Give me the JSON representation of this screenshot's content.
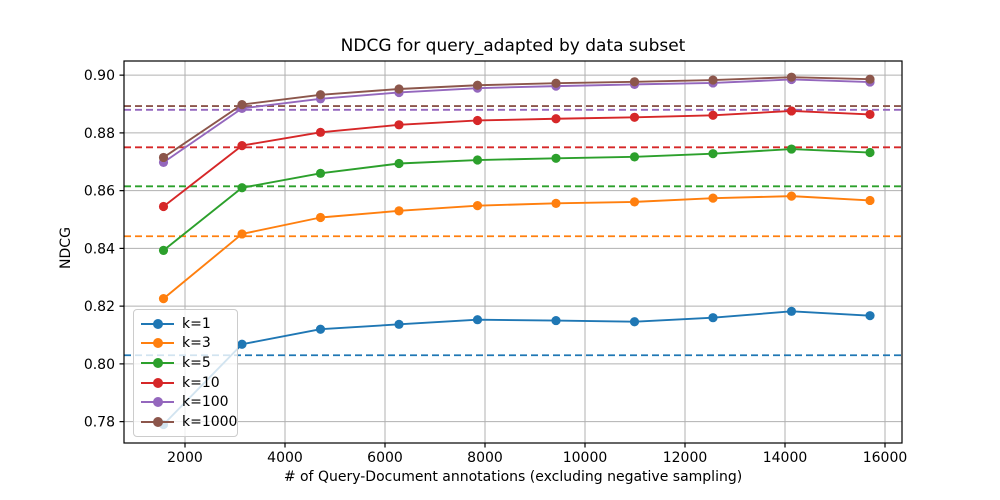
{
  "chart_data": {
    "type": "line",
    "title": "NDCG for query_adapted by data subset",
    "xlabel": "# of Query-Document annotations (excluding negative sampling)",
    "ylabel": "NDCG",
    "grid": true,
    "grid_color": "#b0b0b0",
    "spine_color": "#000000",
    "legend_position": "lower-left",
    "xlim": [
      780,
      16340
    ],
    "ylim": [
      0.7726,
      0.9049
    ],
    "xticks": [
      2000,
      4000,
      6000,
      8000,
      10000,
      12000,
      14000,
      16000
    ],
    "yticks": [
      0.78,
      0.8,
      0.82,
      0.84,
      0.86,
      0.88,
      0.9
    ],
    "x": [
      1570,
      3140,
      4710,
      6280,
      7850,
      9420,
      10990,
      12560,
      14130,
      15700
    ],
    "series": [
      {
        "name": "k=1",
        "color": "#1f77b4",
        "values": [
          0.779,
          0.8068,
          0.812,
          0.8137,
          0.8153,
          0.815,
          0.8146,
          0.816,
          0.8182,
          0.8167
        ],
        "baseline": 0.803
      },
      {
        "name": "k=3",
        "color": "#ff7f0e",
        "values": [
          0.8226,
          0.845,
          0.8507,
          0.853,
          0.8548,
          0.8556,
          0.8561,
          0.8574,
          0.8581,
          0.8566
        ],
        "baseline": 0.8442
      },
      {
        "name": "k=5",
        "color": "#2ca02c",
        "values": [
          0.8393,
          0.861,
          0.866,
          0.8694,
          0.8706,
          0.8712,
          0.8717,
          0.8728,
          0.8744,
          0.8732
        ],
        "baseline": 0.8615
      },
      {
        "name": "k=10",
        "color": "#d62728",
        "values": [
          0.8545,
          0.8756,
          0.8802,
          0.8828,
          0.8843,
          0.8849,
          0.8854,
          0.8861,
          0.8876,
          0.8864
        ],
        "baseline": 0.875
      },
      {
        "name": "k=100",
        "color": "#9467bd",
        "values": [
          0.8698,
          0.8885,
          0.8918,
          0.894,
          0.8955,
          0.8962,
          0.8968,
          0.8973,
          0.8985,
          0.8976
        ],
        "baseline": 0.888
      },
      {
        "name": "k=1000",
        "color": "#8c564b",
        "values": [
          0.8715,
          0.8898,
          0.8932,
          0.8952,
          0.8965,
          0.8972,
          0.8977,
          0.8983,
          0.8993,
          0.8986
        ],
        "baseline": 0.8893
      }
    ]
  }
}
